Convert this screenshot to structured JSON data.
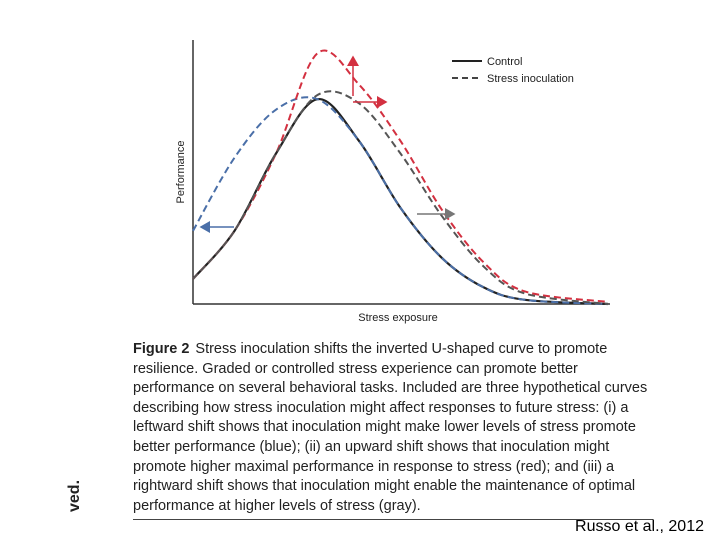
{
  "figure": {
    "legend": [
      {
        "label": "Control",
        "style": "solid",
        "color": "#222222"
      },
      {
        "label": "Stress inoculation",
        "style": "dashed",
        "color": "#444444"
      }
    ],
    "xlabel": "Stress exposure",
    "ylabel": "Performance",
    "caption_label": "Figure 2",
    "caption_text": "Stress inoculation shifts the inverted U-shaped curve to promote resilience. Graded or controlled stress experience can promote better performance on several behavioral tasks. Included are three hypothetical curves describing how stress inoculation might affect responses to future stress: (i) a leftward shift shows that inoculation might make lower levels of stress promote better performance (blue); (ii) an upward shift shows that inoculation might promote higher maximal performance in response to stress (red); and (iii) a rightward shift shows that inoculation might enable the maintenance of optimal performance at higher levels of stress (gray)."
  },
  "side_text": "ved.",
  "credit": "Russo et al., 2012",
  "chart_data": {
    "type": "line",
    "xlabel": "Stress exposure",
    "ylabel": "Performance",
    "xlim": [
      0,
      1
    ],
    "ylim": [
      0,
      1
    ],
    "grid": false,
    "legend_position": "top-right",
    "series": [
      {
        "name": "Control",
        "style": "solid",
        "color": "#222222",
        "x": [
          0,
          0.1,
          0.2,
          0.3,
          0.4,
          0.5,
          0.6,
          0.7,
          0.8,
          1.0
        ],
        "y": [
          0.12,
          0.35,
          0.72,
          0.98,
          0.78,
          0.46,
          0.22,
          0.08,
          0.02,
          0.0
        ]
      },
      {
        "style": "dashed",
        "color": "#4a6fa8",
        "x": [
          0,
          0.1,
          0.2,
          0.3,
          0.4,
          0.5,
          0.6,
          0.7,
          0.8,
          1.0
        ],
        "y": [
          0.35,
          0.7,
          0.93,
          0.98,
          0.78,
          0.46,
          0.22,
          0.08,
          0.02,
          0.0
        ]
      },
      {
        "style": "dashed",
        "color": "#d33040",
        "x": [
          0,
          0.1,
          0.2,
          0.3,
          0.4,
          0.5,
          0.6,
          0.7,
          0.8,
          1.0
        ],
        "y": [
          0.12,
          0.35,
          0.72,
          1.2,
          1.05,
          0.78,
          0.45,
          0.2,
          0.06,
          0.01
        ]
      },
      {
        "name": "Stress inoculation",
        "style": "dashed",
        "color": "#555555",
        "x": [
          0,
          0.1,
          0.2,
          0.3,
          0.4,
          0.5,
          0.6,
          0.7,
          0.8,
          1.0
        ],
        "y": [
          0.12,
          0.35,
          0.72,
          1.0,
          0.96,
          0.72,
          0.42,
          0.18,
          0.05,
          0.0
        ]
      }
    ]
  }
}
